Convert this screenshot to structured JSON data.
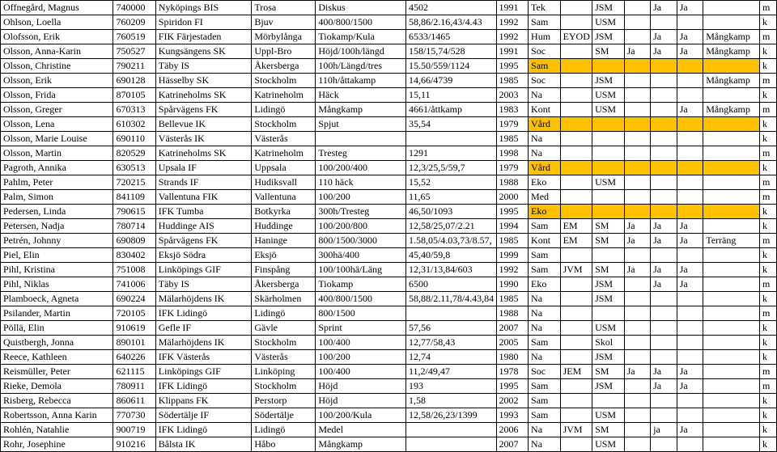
{
  "table": {
    "highlight_color": "#ffc000",
    "rows": [
      {
        "cells": [
          "Offnegård, Magnus",
          "740000",
          "Nyköpings BIS",
          "Trosa",
          "Diskus",
          "4502",
          "1991",
          "Tek",
          "",
          "JSM",
          "",
          "Ja",
          "Ja",
          "",
          "m"
        ],
        "hl": []
      },
      {
        "cells": [
          "Ohlson, Loella",
          "760209",
          "Spiridon FI",
          "Bjuv",
          "400/800/1500",
          "58,86/2.16,43/4.43",
          "1992",
          "Sam",
          "",
          "USM",
          "",
          "",
          "",
          "",
          "k"
        ],
        "hl": []
      },
      {
        "cells": [
          "Olofsson, Erik",
          "760519",
          "FIK Färjestaden",
          "Mörbylånga",
          "Tiokamp/Kula",
          "6533/1465",
          "1992",
          "Hum",
          "EYOD",
          "JSM",
          "",
          "Ja",
          "Ja",
          "Mångkamp",
          "m"
        ],
        "hl": []
      },
      {
        "cells": [
          "Olsson, Anna-Karin",
          "750527",
          "Kungsängens SK",
          "Uppl-Bro",
          "Höjd/100h/längd",
          "158/15,74/528",
          "1991",
          "Soc",
          "",
          "SM",
          "Ja",
          "Ja",
          "Ja",
          "Mångkamp",
          "k"
        ],
        "hl": []
      },
      {
        "cells": [
          "Olsson, Christine",
          "790211",
          "Täby IS",
          "Åkersberga",
          "100h/Längd/tres",
          "15.50/559/1124",
          "1995",
          "Sam",
          "",
          "",
          "",
          "",
          "",
          "",
          "k"
        ],
        "hl": [
          7,
          8,
          9,
          10,
          11,
          12,
          13
        ]
      },
      {
        "cells": [
          "Olsson, Erik",
          "690128",
          "Hässelby SK",
          "Stockholm",
          "110h/åttakamp",
          "14,66/4739",
          "1985",
          "Soc",
          "",
          "JSM",
          "",
          "",
          "",
          "Mångkamp",
          "m"
        ],
        "hl": []
      },
      {
        "cells": [
          "Olsson, Frida",
          "870105",
          "Katrineholms SK",
          "Katrineholm",
          "Häck",
          "15,11",
          "2003",
          "Na",
          "",
          "USM",
          "",
          "",
          "",
          "",
          "k"
        ],
        "hl": []
      },
      {
        "cells": [
          "Olsson, Greger",
          "670313",
          "Spårvägens FK",
          "Lidingö",
          "Mångkamp",
          "4661/åttkamp",
          "1983",
          "Kont",
          "",
          "USM",
          "",
          "",
          "Ja",
          "Mångkamp",
          "m"
        ],
        "hl": []
      },
      {
        "cells": [
          "Olsson, Lena",
          "610302",
          "Bellevue IK",
          "Stockholm",
          "Spjut",
          "35,54",
          "1979",
          "Vård",
          "",
          "",
          "",
          "",
          "",
          "",
          "k"
        ],
        "hl": [
          7,
          8,
          9,
          10,
          11,
          12,
          13
        ]
      },
      {
        "cells": [
          "Olsson, Marie Louise",
          "690110",
          "Västerås IK",
          "Västerås",
          "",
          "",
          "1985",
          "Na",
          "",
          "",
          "",
          "",
          "",
          "",
          "k"
        ],
        "hl": []
      },
      {
        "cells": [
          "Olsson, Martin",
          "820529",
          "Katrineholms SK",
          "Katrineholm",
          "Tresteg",
          "1291",
          "1998",
          "Na",
          "",
          "",
          "",
          "",
          "",
          "",
          "m"
        ],
        "hl": []
      },
      {
        "cells": [
          "Pagroth, Annika",
          "630513",
          "Upsala IF",
          "Uppsala",
          "100/200/400",
          "12,3/25,5/59,7",
          "1979",
          "Vård",
          "",
          "",
          "",
          "",
          "",
          "",
          "k"
        ],
        "hl": [
          7,
          8,
          9,
          10,
          11,
          12,
          13
        ]
      },
      {
        "cells": [
          "Pahlm, Peter",
          "720215",
          "Strands IF",
          "Hudiksvall",
          "110 häck",
          "15,52",
          "1988",
          "Eko",
          "",
          "USM",
          "",
          "",
          "",
          "",
          "m"
        ],
        "hl": []
      },
      {
        "cells": [
          "Palm, Simon",
          "841109",
          "Vallentuna FIK",
          "Vallentuna",
          "100/200",
          "11,65",
          "2000",
          "Med",
          "",
          "",
          "",
          "",
          "",
          "",
          "m"
        ],
        "hl": []
      },
      {
        "cells": [
          "Pedersen, Linda",
          "790615",
          "IFK Tumba",
          "Botkyrka",
          "300h/Tresteg",
          "46,50/1093",
          "1995",
          "Eko",
          "",
          "",
          "",
          "",
          "",
          "",
          "k"
        ],
        "hl": [
          7,
          8,
          9,
          10,
          11,
          12,
          13
        ]
      },
      {
        "cells": [
          "Petersen, Nadja",
          "780714",
          "Huddinge AIS",
          "Huddinge",
          "100/200/800",
          "12,58/25,07/2.21",
          "1994",
          "Sam",
          "EM",
          "SM",
          "Ja",
          "Ja",
          "Ja",
          "",
          "k"
        ],
        "hl": []
      },
      {
        "cells": [
          "Petrén, Johnny",
          "690809",
          "Spårvägens FK",
          "Haninge",
          "800/1500/3000",
          "1.58,05/4.03,73/8.57,",
          "1985",
          "Kont",
          "EM",
          "SM",
          "Ja",
          "Ja",
          "Ja",
          "Terräng",
          "m"
        ],
        "hl": []
      },
      {
        "cells": [
          "Piel, Elin",
          "830402",
          "Eksjö Södra",
          "Eksjö",
          "300hä/400",
          "45,40/59,8",
          "1999",
          "Sam",
          "",
          "",
          "",
          "",
          "",
          "",
          "k"
        ],
        "hl": []
      },
      {
        "cells": [
          "Pihl, Kristina",
          "751008",
          "Linköpings GIF",
          "Finspång",
          "100/100hä/Läng",
          "12,31/13,84/603",
          "1992",
          "Sam",
          "JVM",
          "SM",
          "Ja",
          "Ja",
          "Ja",
          "",
          "k"
        ],
        "hl": []
      },
      {
        "cells": [
          "Pihl, Niklas",
          "741006",
          "Täby IS",
          "Åkersberga",
          "Tiokamp",
          "6500",
          "1990",
          "Eko",
          "",
          "JSM",
          "",
          "Ja",
          "Ja",
          "",
          "m"
        ],
        "hl": []
      },
      {
        "cells": [
          "Plamboeck, Agneta",
          "690224",
          "Mälarhöjdens IK",
          "Skärholmen",
          "400/800/1500",
          "58,88/2.11,78/4.43,84",
          "1985",
          "Na",
          "",
          "JSM",
          "",
          "",
          "",
          "",
          "k"
        ],
        "hl": []
      },
      {
        "cells": [
          "Psilander, Martin",
          "720105",
          "IFK Lidingö",
          "Lidingö",
          "800/1500",
          "",
          "1988",
          "Na",
          "",
          "",
          "",
          "",
          "",
          "",
          "m"
        ],
        "hl": []
      },
      {
        "cells": [
          "Pöllä, Elin",
          "910619",
          "Gefle IF",
          "Gävle",
          "Sprint",
          "57,56",
          "2007",
          "Na",
          "",
          "USM",
          "",
          "",
          "",
          "",
          "k"
        ],
        "hl": []
      },
      {
        "cells": [
          "Quistbergh, Jonna",
          "890101",
          "Mälarhöjdens IK",
          "Stockholm",
          "100/400",
          "12,77/58,43",
          "2005",
          "Sam",
          "",
          "Skol",
          "",
          "",
          "",
          "",
          "k"
        ],
        "hl": []
      },
      {
        "cells": [
          "Reece, Kathleen",
          "640226",
          "IFK Västerås",
          "Västerås",
          "100/200",
          "12,74",
          "1980",
          "Na",
          "",
          "JSM",
          "",
          "",
          "",
          "",
          "k"
        ],
        "hl": []
      },
      {
        "cells": [
          "Reismüller, Peter",
          "621115",
          "Linköpings GIF",
          "Linköping",
          "100/400",
          "11,2/49,47",
          "1978",
          "Soc",
          "JEM",
          "SM",
          "Ja",
          "Ja",
          "Ja",
          "",
          "m"
        ],
        "hl": []
      },
      {
        "cells": [
          "Rieke, Demola",
          "780911",
          "IFK Lidingö",
          "Stockholm",
          "Höjd",
          "193",
          "1995",
          "Sam",
          "",
          "JSM",
          "",
          "Ja",
          "Ja",
          "",
          "m"
        ],
        "hl": []
      },
      {
        "cells": [
          "Risberg, Rebecca",
          "860611",
          "Klippans FK",
          "Perstorp",
          "Höjd",
          "1,58",
          "2002",
          "Sam",
          "",
          "",
          "",
          "",
          "",
          "",
          "k"
        ],
        "hl": []
      },
      {
        "cells": [
          "Robertsson, Anna Karin",
          "770730",
          "Södertälje IF",
          "Södertälje",
          "100/200/Kula",
          "12,58/26,23/1399",
          "1993",
          "Sam",
          "",
          "USM",
          "",
          "",
          "",
          "",
          "k"
        ],
        "hl": []
      },
      {
        "cells": [
          "Rohlén, Natahlie",
          "900719",
          "IFK Lidingö",
          "Lidingö",
          "Medel",
          "",
          "2006",
          "Na",
          "JVM",
          "SM",
          "",
          "ja",
          "Ja",
          "",
          "k"
        ],
        "hl": []
      },
      {
        "cells": [
          "Rohr, Josephine",
          "910216",
          "Bålsta IK",
          "Håbo",
          "Mångkamp",
          "",
          "2007",
          "Na",
          "",
          "USM",
          "",
          "",
          "",
          "",
          "k"
        ],
        "hl": []
      }
    ]
  }
}
